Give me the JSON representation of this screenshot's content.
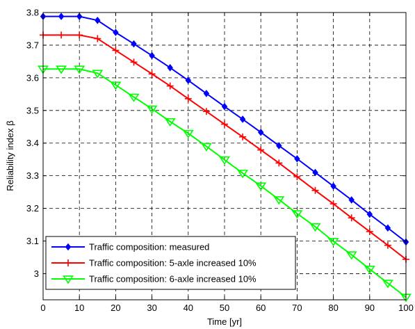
{
  "chart_data": {
    "type": "line",
    "xlabel": "Time [yr]",
    "ylabel": "Reliability index β",
    "xlim": [
      0,
      100
    ],
    "ylim": [
      2.92,
      3.8
    ],
    "xticks": [
      0,
      10,
      20,
      30,
      40,
      50,
      60,
      70,
      80,
      90,
      100
    ],
    "yticks": [
      3,
      3.1,
      3.2,
      3.3,
      3.4,
      3.5,
      3.6,
      3.7,
      3.8
    ],
    "xtick_labels": [
      "0",
      "10",
      "20",
      "30",
      "40",
      "50",
      "60",
      "70",
      "80",
      "90",
      "100"
    ],
    "ytick_labels": [
      "3",
      "3.1",
      "3.2",
      "3.3",
      "3.4",
      "3.5",
      "3.6",
      "3.7",
      "3.8"
    ],
    "grid": true,
    "legend_position": "bottom-left",
    "x": [
      0,
      5,
      10,
      15,
      20,
      25,
      30,
      35,
      40,
      45,
      50,
      55,
      60,
      65,
      70,
      75,
      80,
      85,
      90,
      95,
      100
    ],
    "series": [
      {
        "name": "Traffic composition: measured",
        "color": "#0000ff",
        "marker": "diamond",
        "values": [
          3.788,
          3.788,
          3.788,
          3.776,
          3.739,
          3.704,
          3.668,
          3.631,
          3.592,
          3.552,
          3.512,
          3.473,
          3.433,
          3.392,
          3.352,
          3.31,
          3.268,
          3.226,
          3.182,
          3.14,
          3.097
        ]
      },
      {
        "name": "Traffic composition: 5-axle increased 10%",
        "color": "#ff0000",
        "marker": "plus",
        "values": [
          3.731,
          3.731,
          3.731,
          3.72,
          3.684,
          3.648,
          3.612,
          3.575,
          3.536,
          3.497,
          3.458,
          3.419,
          3.379,
          3.339,
          3.297,
          3.255,
          3.214,
          3.171,
          3.129,
          3.087,
          3.044
        ]
      },
      {
        "name": "Traffic composition: 6-axle increased 10%",
        "color": "#00ff00",
        "marker": "triangle-down",
        "values": [
          3.627,
          3.627,
          3.627,
          3.614,
          3.578,
          3.541,
          3.505,
          3.466,
          3.43,
          3.39,
          3.349,
          3.308,
          3.269,
          3.227,
          3.184,
          3.144,
          3.099,
          3.058,
          3.014,
          2.971,
          2.928
        ]
      }
    ]
  }
}
